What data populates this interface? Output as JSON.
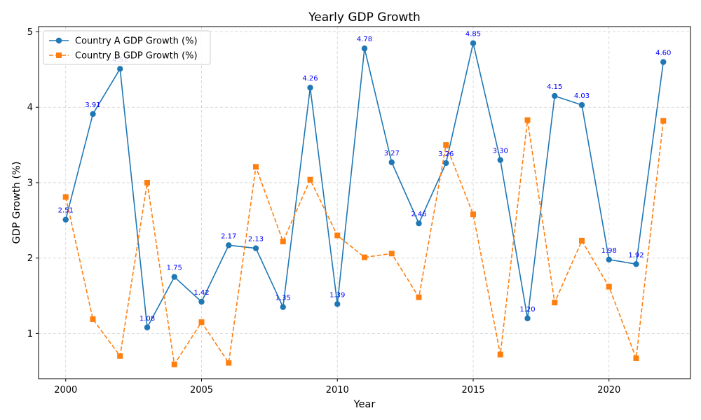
{
  "chart_data": {
    "type": "line",
    "title": "Yearly GDP Growth",
    "xlabel": "Year",
    "ylabel": "GDP Growth (%)",
    "xlim": [
      1999,
      2023
    ],
    "ylim": [
      0.4,
      5.07
    ],
    "xticks": [
      2000,
      2005,
      2010,
      2015,
      2020
    ],
    "yticks": [
      1,
      2,
      3,
      4,
      5
    ],
    "grid": true,
    "legend_position": "top-left",
    "x": [
      2000,
      2001,
      2002,
      2003,
      2004,
      2005,
      2006,
      2007,
      2008,
      2009,
      2010,
      2011,
      2012,
      2013,
      2014,
      2015,
      2016,
      2017,
      2018,
      2019,
      2020,
      2021,
      2022
    ],
    "series": [
      {
        "name": "Country A GDP Growth (%)",
        "color": "#1f77b4",
        "marker": "circle",
        "linestyle": "solid",
        "values": [
          2.51,
          3.91,
          4.51,
          1.08,
          1.75,
          1.42,
          2.17,
          2.13,
          1.35,
          4.26,
          1.39,
          4.78,
          3.27,
          2.46,
          3.26,
          4.85,
          3.3,
          1.2,
          4.15,
          4.03,
          1.98,
          1.92,
          4.6
        ],
        "labels": [
          "2.51",
          "3.91",
          "4.51",
          "1.08",
          "1.75",
          "1.42",
          "2.17",
          "2.13",
          "1.35",
          "4.26",
          "1.39",
          "4.78",
          "3.27",
          "2.46",
          "3.26",
          "4.85",
          "3.30",
          "1.20",
          "4.15",
          "4.03",
          "1.98",
          "1.92",
          "4.60"
        ]
      },
      {
        "name": "Country B GDP Growth (%)",
        "color": "#ff7f0e",
        "marker": "square",
        "linestyle": "dashed",
        "values": [
          2.81,
          1.19,
          0.7,
          3.0,
          0.59,
          1.15,
          0.61,
          3.21,
          2.22,
          3.04,
          2.3,
          2.01,
          2.06,
          1.48,
          3.5,
          2.58,
          0.72,
          3.83,
          1.41,
          2.23,
          1.62,
          0.67,
          3.82
        ]
      }
    ]
  }
}
